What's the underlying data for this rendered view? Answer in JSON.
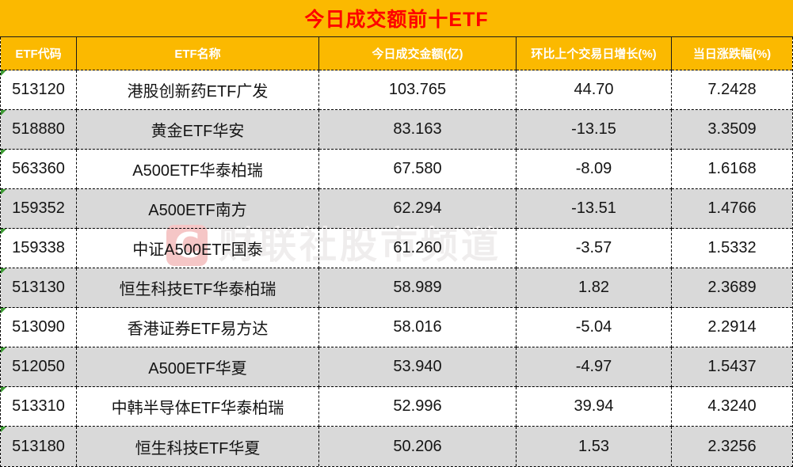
{
  "title": "今日成交额前十ETF",
  "watermark": {
    "logo_letter": "C",
    "text": "财联社股市频道"
  },
  "colors": {
    "banner_bg": "#FBB900",
    "title_text": "#FE0000",
    "header_text": "#FFFFFF",
    "alt_row_bg": "#D9D9D9",
    "body_text": "#141414",
    "error_indicator_green": "#3E9B35",
    "watermark_text": "#EFEDED",
    "watermark_logo_bg": "#F5C6C6"
  },
  "chart_data": {
    "type": "table",
    "title": "今日成交额前十ETF",
    "columns": [
      "ETF代码",
      "ETF名称",
      "今日成交金额(亿)",
      "环比上个交易日增长(%)",
      "当日涨跌幅(%)"
    ],
    "rows": [
      [
        "513120",
        "港股创新药ETF广发",
        "103.765",
        "44.70",
        "7.2428"
      ],
      [
        "518880",
        "黄金ETF华安",
        "83.163",
        "-13.15",
        "3.3509"
      ],
      [
        "563360",
        "A500ETF华泰柏瑞",
        "67.580",
        "-8.09",
        "1.6168"
      ],
      [
        "159352",
        "A500ETF南方",
        "62.294",
        "-13.51",
        "1.4766"
      ],
      [
        "159338",
        "中证A500ETF国泰",
        "61.260",
        "-3.57",
        "1.5332"
      ],
      [
        "513130",
        "恒生科技ETF华泰柏瑞",
        "58.989",
        "1.82",
        "2.3689"
      ],
      [
        "513090",
        "香港证券ETF易方达",
        "58.016",
        "-5.04",
        "2.2914"
      ],
      [
        "512050",
        "A500ETF华夏",
        "53.940",
        "-4.97",
        "1.5437"
      ],
      [
        "513310",
        "中韩半导体ETF华泰柏瑞",
        "52.996",
        "39.94",
        "4.3240"
      ],
      [
        "513180",
        "恒生科技ETF华夏",
        "50.206",
        "1.53",
        "2.3256"
      ]
    ]
  }
}
